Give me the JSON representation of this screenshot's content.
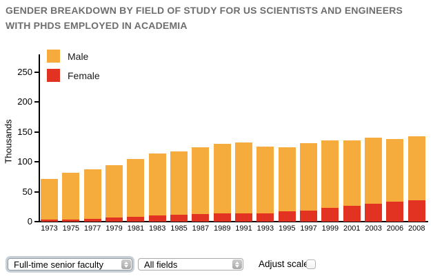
{
  "title": "GENDER BREAKDOWN BY FIELD OF STUDY FOR US SCIENTISTS AND ENGINEERS WITH PHDS EMPLOYED IN ACADEMIA",
  "legend": [
    {
      "label": "Male",
      "color": "#F6AC3C"
    },
    {
      "label": "Female",
      "color": "#E23322"
    }
  ],
  "chart_data": {
    "type": "bar",
    "stacked": true,
    "title": "",
    "xlabel": "",
    "ylabel": "Thousands",
    "ylim": [
      0,
      250
    ],
    "yticks": [
      0,
      50,
      100,
      150,
      200,
      250
    ],
    "grid": false,
    "legend_position": "top-left",
    "categories": [
      "1973",
      "1975",
      "1977",
      "1979",
      "1981",
      "1983",
      "1985",
      "1987",
      "1989",
      "1991",
      "1993",
      "1995",
      "1997",
      "1999",
      "2001",
      "2003",
      "2006",
      "2008"
    ],
    "series": [
      {
        "name": "Male",
        "color": "#F6AC3C",
        "values": [
          68,
          78,
          83,
          88,
          97,
          104,
          107,
          112,
          116,
          118,
          112,
          107,
          112,
          113,
          110,
          111,
          105,
          107
        ]
      },
      {
        "name": "Female",
        "color": "#E23322",
        "values": [
          3,
          4,
          5,
          7,
          8,
          10,
          11,
          13,
          14,
          14,
          14,
          17,
          19,
          23,
          26,
          30,
          33,
          36
        ]
      }
    ],
    "totals": [
      71,
      82,
      88,
      95,
      105,
      114,
      118,
      125,
      130,
      132,
      126,
      124,
      131,
      136,
      136,
      141,
      138,
      143
    ]
  },
  "controls": {
    "faculty_select": {
      "value": "Full-time senior faculty"
    },
    "field_select": {
      "value": "All fields"
    },
    "adjust_scale_label": "Adjust scale:",
    "adjust_scale_checked": false
  }
}
